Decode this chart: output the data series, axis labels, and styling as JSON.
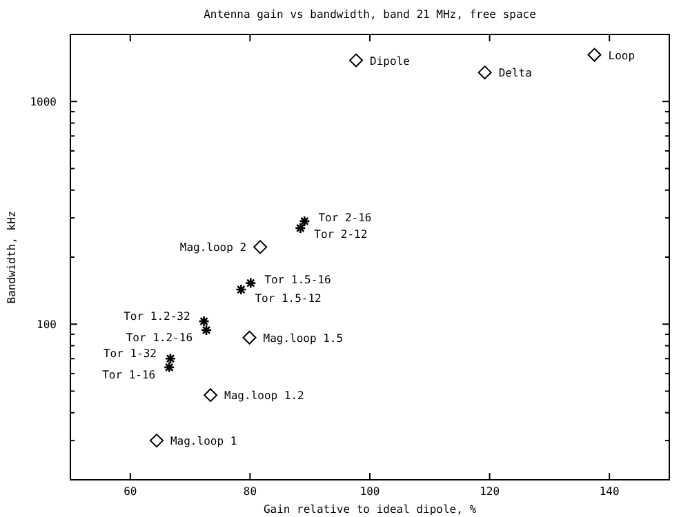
{
  "chart_data": {
    "type": "scatter",
    "title": "Antenna gain vs bandwidth, band 21 MHz, free space",
    "xlabel": "Gain relative to ideal dipole, %",
    "ylabel": "Bandwidth, kHz",
    "log": "y",
    "xlim": [
      50,
      150
    ],
    "xticks": [
      60,
      80,
      100,
      120,
      140
    ],
    "ylim": [
      20,
      2000
    ],
    "yticks": [
      {
        "value": 20,
        "label": null
      },
      {
        "value": 30,
        "label": null
      },
      {
        "value": 40,
        "label": null
      },
      {
        "value": 50,
        "label": null
      },
      {
        "value": 60,
        "label": null
      },
      {
        "value": 70,
        "label": null
      },
      {
        "value": 80,
        "label": null
      },
      {
        "value": 90,
        "label": null
      },
      100,
      {
        "value": 200,
        "label": null
      },
      {
        "value": 300,
        "label": null
      },
      {
        "value": 400,
        "label": null
      },
      {
        "value": 500,
        "label": null
      },
      {
        "value": 600,
        "label": null
      },
      {
        "value": 700,
        "label": null
      },
      {
        "value": 800,
        "label": null
      },
      {
        "value": 900,
        "label": null
      },
      1000,
      {
        "value": 2000,
        "label": null
      }
    ],
    "grid": false,
    "series": [
      {
        "color": "#000000",
        "marker": "diamond",
        "x": [
          97.7,
          119.2,
          137.5,
          81.7,
          79.9,
          73.4,
          64.4
        ],
        "values": [
          1530,
          1350,
          1620,
          222,
          87,
          48,
          30
        ]
      },
      {
        "color": "#000000",
        "marker": "cross",
        "x": [
          89.1,
          88.4,
          80.1,
          78.5,
          72.3,
          72.7,
          66.7,
          66.5
        ],
        "values": [
          290,
          270,
          153,
          143,
          103,
          94,
          70,
          64
        ]
      }
    ],
    "annotations": [
      {
        "text": "Dipole",
        "x": 97.7,
        "y": 1530
      },
      {
        "text": "Delta",
        "x": 119.2,
        "y": 1350
      },
      {
        "text": "Loop",
        "x": 137.5,
        "y": 1620
      },
      {
        "text": "Tor 2-16",
        "x": 89.1,
        "y": 290
      },
      {
        "text": "Tor 2-12",
        "x": 88.4,
        "y": 270
      },
      {
        "text": "Mag.loop 2",
        "x": 81.7,
        "y": 222
      },
      {
        "text": "Tor 1.5-16",
        "x": 80.1,
        "y": 153
      },
      {
        "text": "Tor 1.5-12",
        "x": 78.5,
        "y": 143
      },
      {
        "text": "Tor 1.2-32",
        "x": 72.3,
        "y": 103
      },
      {
        "text": "Tor 1.2-16",
        "x": 72.7,
        "y": 94
      },
      {
        "text": "Mag.loop 1.5",
        "x": 79.9,
        "y": 87
      },
      {
        "text": "Tor 1-32",
        "x": 66.7,
        "y": 70
      },
      {
        "text": "Tor 1-16",
        "x": 66.5,
        "y": 64
      },
      {
        "text": "Mag.loop 1.2",
        "x": 73.4,
        "y": 48
      },
      {
        "text": "Mag.loop 1",
        "x": 64.4,
        "y": 30
      }
    ]
  }
}
